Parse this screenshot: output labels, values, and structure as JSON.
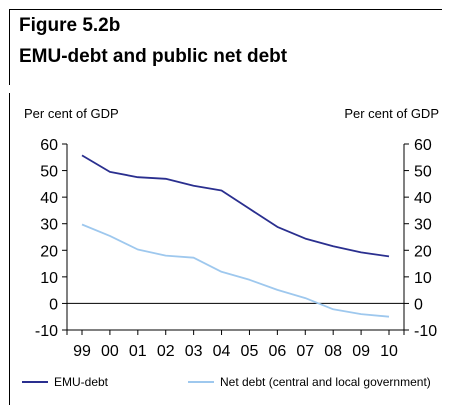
{
  "figure": {
    "title": "Figure 5.2b",
    "subtitle": "EMU-debt and public net debt"
  },
  "chart_data": {
    "type": "line",
    "title": "EMU-debt and public net debt",
    "ylabel_left": "Per cent of GDP",
    "ylabel_right": "Per cent of GDP",
    "categories": [
      "99",
      "00",
      "01",
      "02",
      "03",
      "04",
      "05",
      "06",
      "07",
      "08",
      "09",
      "10"
    ],
    "ylim": [
      -10,
      60
    ],
    "yticks": [
      -10,
      0,
      10,
      20,
      30,
      40,
      50,
      60
    ],
    "ytick_labels": [
      "-10",
      "0",
      "10",
      "20",
      "30",
      "40",
      "50",
      "60"
    ],
    "grid": false,
    "legend_position": "bottom",
    "series": [
      {
        "name": "EMU-debt",
        "color": "#2a2f8f",
        "values": [
          55.7,
          49.5,
          47.5,
          46.9,
          44.3,
          42.5,
          35.6,
          28.8,
          24.4,
          21.5,
          19.2,
          17.7
        ]
      },
      {
        "name": "Net debt (central and local government)",
        "color": "#9ec8ee",
        "values": [
          29.7,
          25.4,
          20.3,
          18.0,
          17.2,
          11.9,
          8.9,
          5.1,
          2.0,
          -2.2,
          -4.0,
          -5.0
        ]
      }
    ]
  }
}
